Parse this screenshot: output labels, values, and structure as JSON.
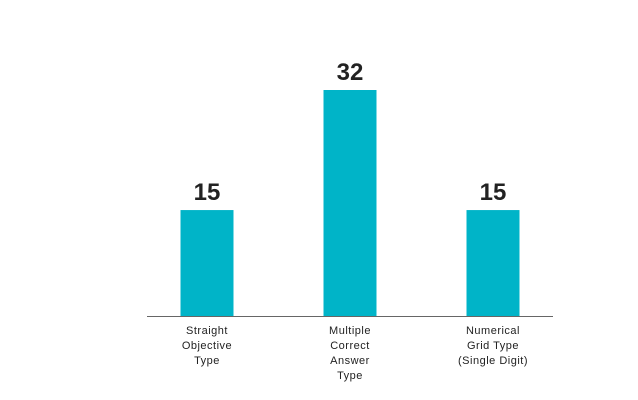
{
  "chart_data": {
    "type": "bar",
    "categories": [
      "Straight\nObjective\nType",
      "Multiple\nCorrect\nAnswer\nType",
      "Numerical\nGrid Type\n(Single Digit)"
    ],
    "values": [
      15,
      32,
      15
    ],
    "color": "#00b4c8",
    "ylim": [
      0,
      32
    ]
  }
}
